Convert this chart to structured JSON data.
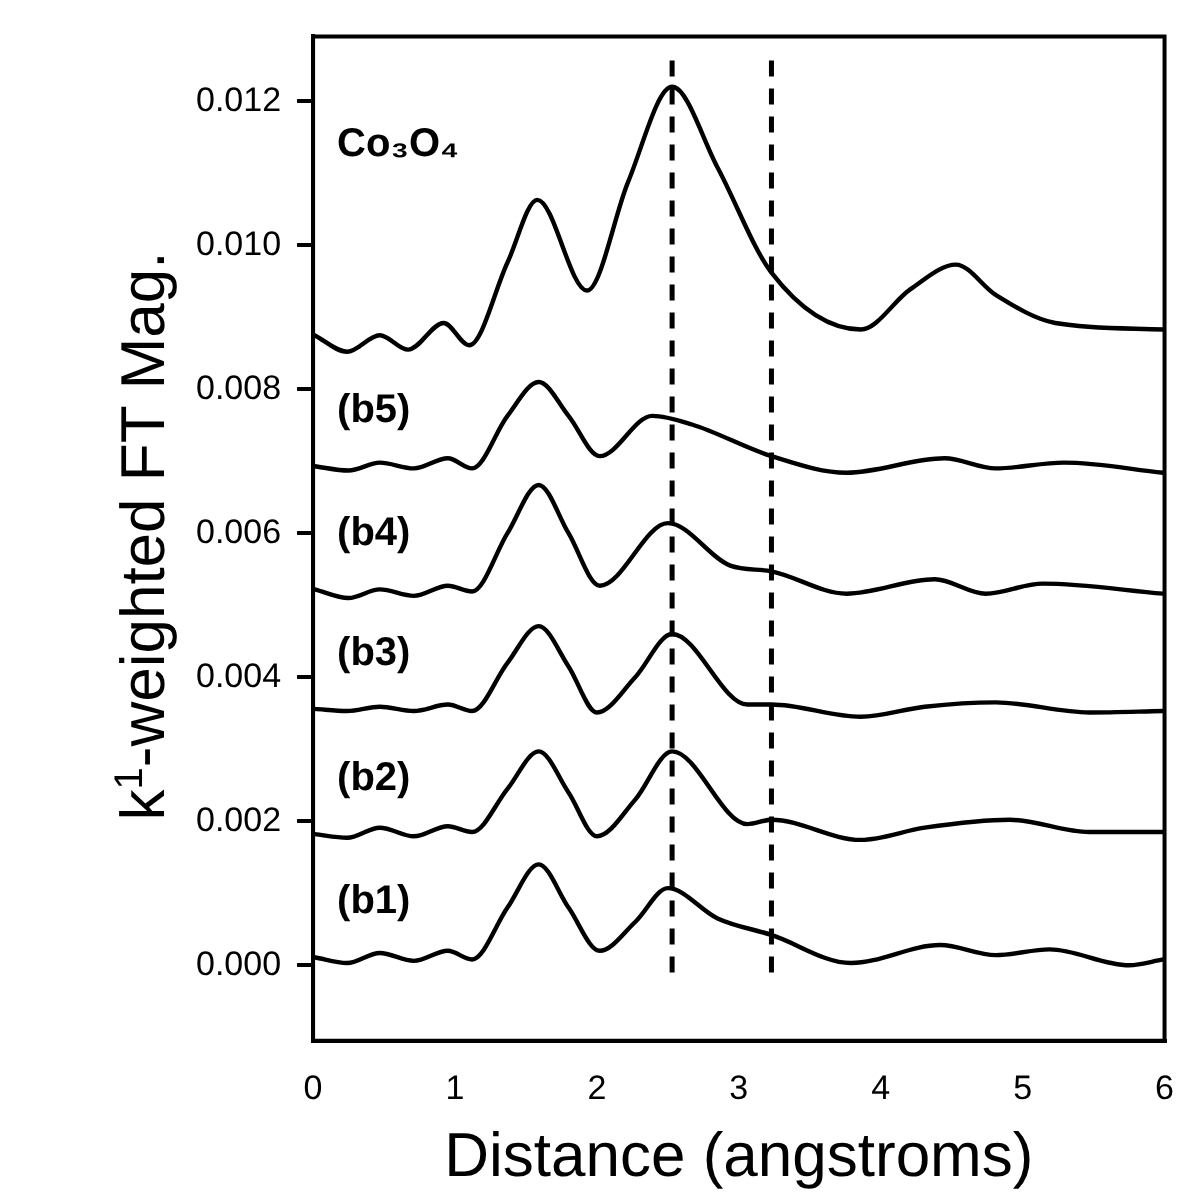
{
  "chart_data": {
    "type": "line",
    "xlabel": "Distance (angstroms)",
    "ylabel": "k$^{1}$-weighted FT Mag.",
    "xlim": [
      0,
      6
    ],
    "xticks": [
      0,
      1,
      2,
      3,
      4,
      5,
      6
    ],
    "ylim": [
      -0.00105,
      0.0129
    ],
    "yticks": [
      {
        "value": 0,
        "label": "0.000"
      },
      {
        "value": 0.002,
        "label": "0.002"
      },
      {
        "value": 0.004,
        "label": "0.004"
      },
      {
        "value": 0.006,
        "label": "0.006"
      },
      {
        "value": 0.008,
        "label": "0.008"
      },
      {
        "value": 0.01,
        "label": "0.010"
      },
      {
        "value": 0.012,
        "label": "0.012"
      }
    ],
    "legend": false,
    "marker": "none",
    "line_style": "solid",
    "ref_lines": [
      {
        "axis": "x",
        "value": 2.53,
        "color": "#000000",
        "line_style": "dashed"
      },
      {
        "axis": "x",
        "value": 3.23,
        "color": "#000000",
        "line_style": "dashed"
      }
    ],
    "series": [
      {
        "name": "Co₃O₄",
        "color": "#000000",
        "x": [
          0.01,
          0.24,
          0.47,
          0.67,
          0.92,
          1.1,
          1.37,
          1.58,
          1.93,
          2.22,
          2.53,
          2.85,
          3.23,
          3.86,
          4.21,
          4.53,
          4.81,
          5.23,
          5.99
        ],
        "values": [
          0.00875,
          0.00852,
          0.00875,
          0.00855,
          0.00892,
          0.00861,
          0.00976,
          0.01063,
          0.00937,
          0.01088,
          0.0122,
          0.01108,
          0.00962,
          0.00883,
          0.00939,
          0.00973,
          0.00931,
          0.00892,
          0.00883
        ]
      },
      {
        "name": "(b5)",
        "color": "#000000",
        "x": [
          0.01,
          0.25,
          0.47,
          0.71,
          0.95,
          1.12,
          1.37,
          1.59,
          1.8,
          2.02,
          2.39,
          2.67,
          3.23,
          3.76,
          4.45,
          4.81,
          5.29,
          5.99
        ],
        "values": [
          0.00693,
          0.00687,
          0.00698,
          0.0069,
          0.00704,
          0.0069,
          0.00763,
          0.0081,
          0.00763,
          0.00707,
          0.00763,
          0.00751,
          0.00707,
          0.00684,
          0.00704,
          0.0069,
          0.00698,
          0.00684
        ]
      },
      {
        "name": "(b4)",
        "color": "#000000",
        "x": [
          0.01,
          0.25,
          0.47,
          0.71,
          0.95,
          1.12,
          1.37,
          1.59,
          1.8,
          2.02,
          2.5,
          2.94,
          3.23,
          3.76,
          4.38,
          4.74,
          5.14,
          5.99
        ],
        "values": [
          0.00522,
          0.0051,
          0.00522,
          0.00513,
          0.00527,
          0.00519,
          0.006,
          0.00667,
          0.006,
          0.00527,
          0.00614,
          0.00555,
          0.00547,
          0.00516,
          0.00536,
          0.00516,
          0.0053,
          0.00516
        ]
      },
      {
        "name": "(b3)",
        "color": "#000000",
        "x": [
          0.01,
          0.24,
          0.47,
          0.71,
          0.95,
          1.12,
          1.37,
          1.59,
          1.8,
          2.0,
          2.27,
          2.53,
          3.06,
          3.23,
          3.86,
          4.31,
          4.81,
          5.47,
          5.99
        ],
        "values": [
          0.00356,
          0.00353,
          0.00359,
          0.00353,
          0.00362,
          0.00353,
          0.0042,
          0.00471,
          0.00415,
          0.00351,
          0.004,
          0.0046,
          0.00362,
          0.00362,
          0.00345,
          0.00359,
          0.00365,
          0.00351,
          0.00353
        ]
      },
      {
        "name": "(b2)",
        "color": "#000000",
        "x": [
          0.01,
          0.24,
          0.47,
          0.71,
          0.95,
          1.12,
          1.37,
          1.59,
          1.8,
          2.0,
          2.27,
          2.53,
          3.06,
          3.23,
          3.86,
          4.31,
          4.91,
          5.47,
          5.99
        ],
        "values": [
          0.00182,
          0.00177,
          0.00191,
          0.00179,
          0.00193,
          0.00185,
          0.00245,
          0.00297,
          0.0024,
          0.00179,
          0.0023,
          0.00297,
          0.00196,
          0.00202,
          0.00174,
          0.00191,
          0.00202,
          0.00185,
          0.00185
        ]
      },
      {
        "name": "(b1)",
        "color": "#000000",
        "x": [
          0.01,
          0.24,
          0.47,
          0.71,
          0.95,
          1.12,
          1.37,
          1.59,
          1.8,
          2.02,
          2.27,
          2.5,
          2.85,
          3.23,
          3.79,
          4.42,
          4.81,
          5.19,
          5.75,
          5.99
        ],
        "values": [
          0.00011,
          3e-05,
          0.00017,
          6e-05,
          0.0002,
          8e-05,
          0.0008,
          0.0014,
          0.0008,
          0.0002,
          0.0006,
          0.00107,
          0.00065,
          0.00042,
          3e-05,
          0.00028,
          0.00014,
          0.00022,
          0.0,
          8e-05
        ]
      }
    ]
  }
}
